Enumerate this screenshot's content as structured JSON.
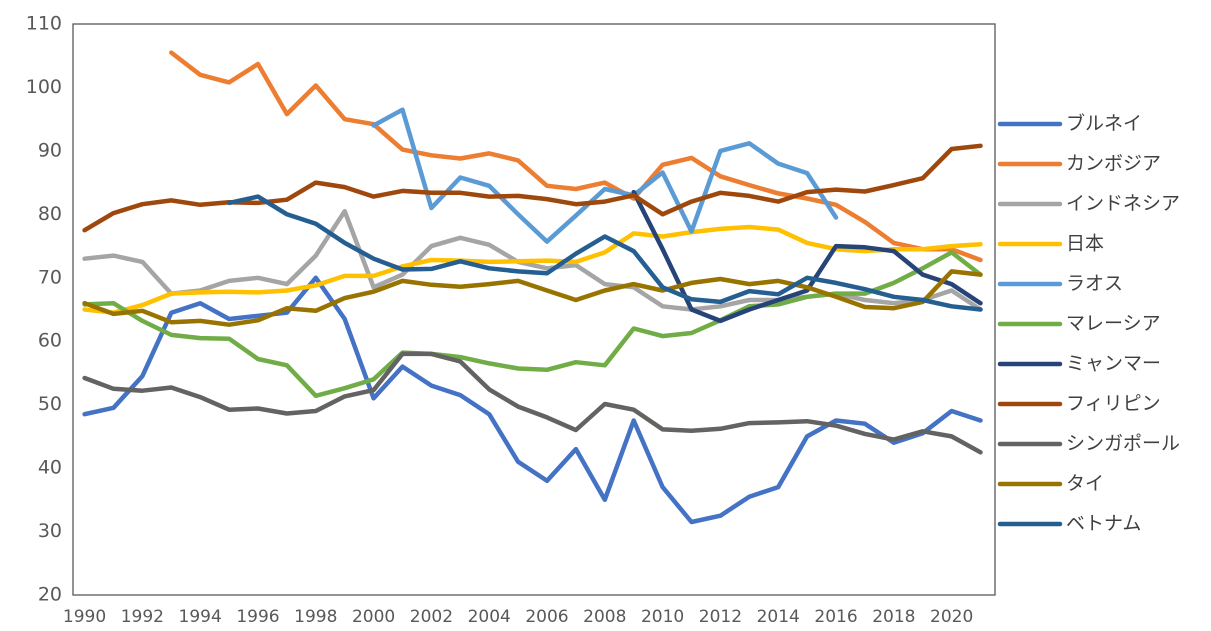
{
  "chart_data": {
    "type": "line",
    "x": [
      1990,
      1991,
      1992,
      1993,
      1994,
      1995,
      1996,
      1997,
      1998,
      1999,
      2000,
      2001,
      2002,
      2003,
      2004,
      2005,
      2006,
      2007,
      2008,
      2009,
      2010,
      2011,
      2012,
      2013,
      2014,
      2015,
      2016,
      2017,
      2018,
      2019,
      2020,
      2021
    ],
    "xlim": [
      1989.6,
      2021.5
    ],
    "xticks": [
      1990,
      1992,
      1994,
      1996,
      1998,
      2000,
      2002,
      2004,
      2006,
      2008,
      2010,
      2012,
      2014,
      2016,
      2018,
      2020
    ],
    "ylim": [
      20,
      110
    ],
    "yticks": [
      20,
      30,
      40,
      50,
      60,
      70,
      80,
      90,
      100,
      110
    ],
    "grid": false,
    "legend": "right",
    "series": [
      {
        "name": "ブルネイ",
        "color": "#4472c4",
        "values": [
          48.5,
          49.5,
          54.5,
          64.5,
          66,
          63.5,
          64,
          64.5,
          70,
          63.5,
          51,
          56,
          53,
          51.5,
          48.5,
          41,
          38,
          43,
          35,
          47.5,
          37,
          31.5,
          32.5,
          35.5,
          37,
          45,
          47.5,
          47,
          44,
          45.5,
          49,
          47.5
        ]
      },
      {
        "name": "カンボジア",
        "color": "#ed7d31",
        "values": [
          null,
          null,
          null,
          105.5,
          102,
          100.8,
          103.7,
          95.8,
          100.3,
          95,
          94.2,
          90.2,
          89.3,
          88.8,
          89.6,
          88.5,
          84.5,
          84,
          85,
          82.5,
          87.8,
          88.9,
          86,
          84.6,
          83.3,
          82.5,
          81.5,
          78.8,
          75.5,
          74.5,
          74.5,
          72.8
        ]
      },
      {
        "name": "インドネシア",
        "color": "#a5a5a5",
        "values": [
          73,
          73.5,
          72.5,
          67.5,
          68,
          69.5,
          70,
          69,
          73.5,
          80.5,
          68.5,
          70.5,
          75,
          76.3,
          75.2,
          72.5,
          71.5,
          72,
          69,
          68.5,
          65.5,
          65,
          65.5,
          66.5,
          66.5,
          67,
          67.5,
          66.5,
          66,
          66.5,
          68,
          65
        ]
      },
      {
        "name": "日本",
        "color": "#ffc000",
        "values": [
          65,
          64.5,
          65.7,
          67.5,
          67.7,
          67.8,
          67.7,
          68,
          68.8,
          70.3,
          70.3,
          71.8,
          72.8,
          72.7,
          72.5,
          72.6,
          72.7,
          72.5,
          74,
          77,
          76.5,
          77.2,
          77.7,
          78,
          77.6,
          75.5,
          74.5,
          74.2,
          74.5,
          74.5,
          75,
          75.3
        ]
      },
      {
        "name": "ラオス",
        "color": "#5b9bd5",
        "values": [
          null,
          null,
          null,
          null,
          null,
          null,
          null,
          null,
          null,
          null,
          94,
          96.5,
          81,
          85.8,
          84.5,
          80,
          75.7,
          79.8,
          84,
          83,
          86.6,
          77.3,
          90,
          91.2,
          88,
          86.5,
          79.5,
          null,
          null,
          null,
          null,
          null
        ]
      },
      {
        "name": "マレーシア",
        "color": "#70ad47",
        "values": [
          65.8,
          66,
          63.2,
          61,
          60.5,
          60.4,
          57.2,
          56.2,
          51.4,
          52.6,
          54,
          58.2,
          58,
          57.5,
          56.5,
          55.7,
          55.5,
          56.7,
          56.2,
          62,
          60.8,
          61.3,
          63.3,
          65.5,
          65.8,
          67,
          67.5,
          67.5,
          69.2,
          71.5,
          74,
          70.5
        ]
      },
      {
        "name": "ミャンマー",
        "color": "#264478",
        "values": [
          null,
          null,
          null,
          null,
          null,
          null,
          null,
          null,
          null,
          null,
          null,
          null,
          null,
          null,
          null,
          null,
          null,
          null,
          null,
          83.5,
          74.5,
          65,
          63.2,
          65,
          66.5,
          68,
          75,
          74.8,
          74.2,
          70.5,
          69,
          66
        ]
      },
      {
        "name": "フィリピン",
        "color": "#9e480e",
        "values": [
          77.5,
          80.2,
          81.6,
          82.2,
          81.5,
          81.9,
          81.8,
          82.3,
          85,
          84.3,
          82.8,
          83.7,
          83.4,
          83.4,
          82.8,
          82.9,
          82.4,
          81.6,
          82,
          83,
          80,
          82,
          83.4,
          82.9,
          82,
          83.5,
          83.9,
          83.6,
          84.6,
          85.7,
          90.3,
          90.8
        ]
      },
      {
        "name": "シンガポール",
        "color": "#636363",
        "values": [
          54.2,
          52.5,
          52.2,
          52.7,
          51.2,
          49.2,
          49.4,
          48.6,
          49,
          51.3,
          52.3,
          58,
          58,
          56.8,
          52.4,
          49.7,
          48,
          46,
          50.1,
          49.2,
          46.1,
          45.9,
          46.2,
          47.1,
          47.2,
          47.4,
          46.7,
          45.4,
          44.5,
          45.8,
          45,
          42.5
        ]
      },
      {
        "name": "タイ",
        "color": "#997300",
        "values": [
          66,
          64.3,
          64.8,
          63,
          63.2,
          62.6,
          63.3,
          65.2,
          64.8,
          66.8,
          67.8,
          69.5,
          68.9,
          68.6,
          69,
          69.5,
          68,
          66.5,
          68,
          69,
          68,
          69.2,
          69.8,
          69,
          69.5,
          68.5,
          67,
          65.4,
          65.2,
          66.2,
          71,
          70.5
        ]
      },
      {
        "name": "ベトナム",
        "color": "#255e91",
        "values": [
          null,
          null,
          null,
          null,
          null,
          81.8,
          82.8,
          80,
          78.5,
          75.5,
          73,
          71.3,
          71.4,
          72.6,
          71.5,
          71,
          70.7,
          73.8,
          76.5,
          74.2,
          68.5,
          66.6,
          66.2,
          67.9,
          67.4,
          70,
          69.2,
          68.2,
          67,
          66.5,
          65.5,
          65
        ]
      }
    ]
  }
}
